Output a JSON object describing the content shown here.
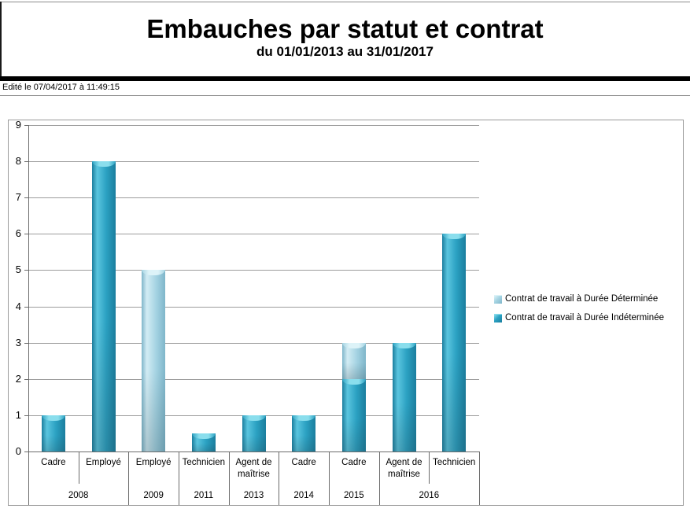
{
  "header": {
    "title": "Embauches par statut et contrat",
    "subtitle": "du 01/01/2013 au 31/01/2017",
    "edited_line": "Edité le 07/04/2017 à 11:49:15"
  },
  "chart_data": {
    "type": "bar",
    "stacked": true,
    "grid": true,
    "legend_position": "right-middle",
    "title": "Embauches par statut et contrat",
    "subtitle": "du 01/01/2013 au 31/01/2017",
    "ylabel": "",
    "xlabel": "",
    "ylim": [
      0,
      9
    ],
    "yticks": [
      0,
      1,
      2,
      3,
      4,
      5,
      6,
      7,
      8,
      9
    ],
    "categories": [
      {
        "label": "Cadre",
        "group": "2008"
      },
      {
        "label": "Employé",
        "group": "2008"
      },
      {
        "label": "Employé",
        "group": "2009"
      },
      {
        "label": "Technicien",
        "group": "2011"
      },
      {
        "label": "Agent de maîtrise",
        "group": "2013"
      },
      {
        "label": "Cadre",
        "group": "2014"
      },
      {
        "label": "Cadre",
        "group": "2015"
      },
      {
        "label": "Agent de maîtrise",
        "group": "2016"
      },
      {
        "label": "Technicien",
        "group": "2016"
      }
    ],
    "series": [
      {
        "name": "Contrat de travail à Durée Déterminée",
        "values": [
          0,
          0,
          5,
          0,
          0,
          0,
          1,
          0,
          0
        ],
        "colors": {
          "main": "#a6d4e3",
          "edge": "#7fb6ca",
          "highlight": "#d2ecf4",
          "cap": "#ddf3f8"
        }
      },
      {
        "name": "Contrat de travail à Durée Indéterminée",
        "values": [
          1,
          8,
          0,
          0.5,
          1,
          1,
          2,
          3,
          6
        ],
        "colors": {
          "main": "#2ba1c2",
          "edge": "#1b7e9e",
          "highlight": "#5ac5df",
          "cap": "#8adeed"
        }
      }
    ]
  }
}
